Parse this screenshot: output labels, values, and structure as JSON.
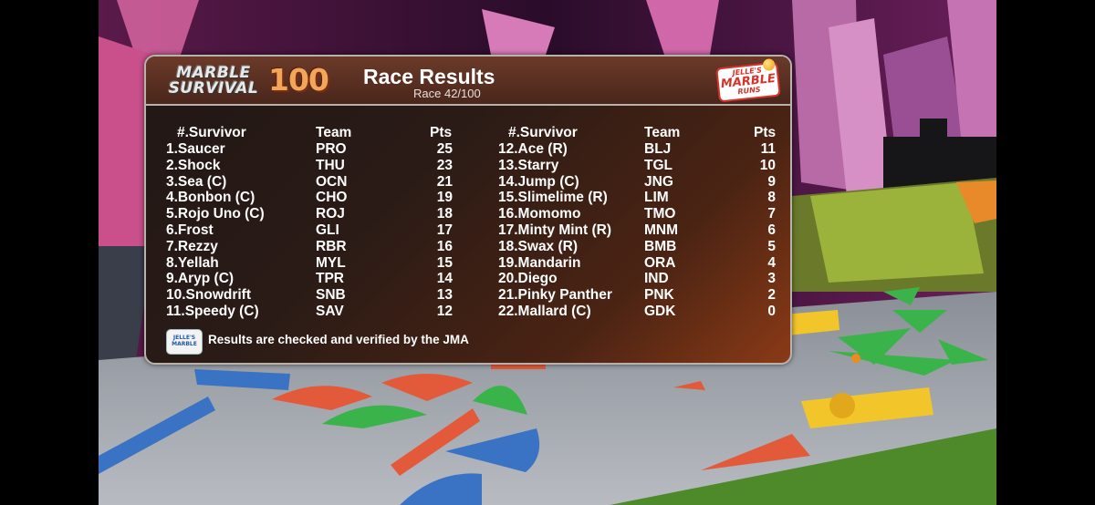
{
  "header": {
    "logo_line1": "MARBLE",
    "logo_line2": "SURVIVAL",
    "logo_number": "100",
    "title": "Race Results",
    "subtitle": "Race 42/100",
    "brand_top": "JELLE'S",
    "brand_mid": "MARBLE",
    "brand_bot": "RUNS"
  },
  "columns": {
    "survivor": "#.Survivor",
    "team": "Team",
    "pts": "Pts"
  },
  "results_left": [
    {
      "rank_name": "1.Saucer",
      "team": "PRO",
      "pts": "25"
    },
    {
      "rank_name": "2.Shock",
      "team": "THU",
      "pts": "23"
    },
    {
      "rank_name": "3.Sea (C)",
      "team": "OCN",
      "pts": "21"
    },
    {
      "rank_name": "4.Bonbon (C)",
      "team": "CHO",
      "pts": "19"
    },
    {
      "rank_name": "5.Rojo Uno (C)",
      "team": "ROJ",
      "pts": "18"
    },
    {
      "rank_name": "6.Frost",
      "team": "GLI",
      "pts": "17"
    },
    {
      "rank_name": "7.Rezzy",
      "team": "RBR",
      "pts": "16"
    },
    {
      "rank_name": "8.Yellah",
      "team": "MYL",
      "pts": "15"
    },
    {
      "rank_name": "9.Aryp (C)",
      "team": "TPR",
      "pts": "14"
    },
    {
      "rank_name": "10.Snowdrift",
      "team": "SNB",
      "pts": "13"
    },
    {
      "rank_name": "11.Speedy (C)",
      "team": "SAV",
      "pts": "12"
    }
  ],
  "results_right": [
    {
      "rank_name": "12.Ace (R)",
      "team": "BLJ",
      "pts": "11"
    },
    {
      "rank_name": "13.Starry",
      "team": "TGL",
      "pts": "10"
    },
    {
      "rank_name": "14.Jump (C)",
      "team": "JNG",
      "pts": "9"
    },
    {
      "rank_name": "15.Slimelime (R)",
      "team": "LIM",
      "pts": "8"
    },
    {
      "rank_name": "16.Momomo",
      "team": "TMO",
      "pts": "7"
    },
    {
      "rank_name": "17.Minty Mint (R)",
      "team": "MNM",
      "pts": "6"
    },
    {
      "rank_name": "18.Swax (R)",
      "team": "BMB",
      "pts": "5"
    },
    {
      "rank_name": "19.Mandarin",
      "team": "ORA",
      "pts": "4"
    },
    {
      "rank_name": "20.Diego",
      "team": "IND",
      "pts": "3"
    },
    {
      "rank_name": "21.Pinky Panther",
      "team": "PNK",
      "pts": "2"
    },
    {
      "rank_name": "22.Mallard (C)",
      "team": "GDK",
      "pts": "0"
    }
  ],
  "footer": {
    "logo_text": "JELLE'S MARBLE",
    "note": "Results are checked and verified by the JMA"
  },
  "colors": {
    "panel_dark": "#211716",
    "panel_accent": "#8a3a16",
    "logo_orange": "#f2a65a",
    "brand_red": "#d6322a"
  }
}
